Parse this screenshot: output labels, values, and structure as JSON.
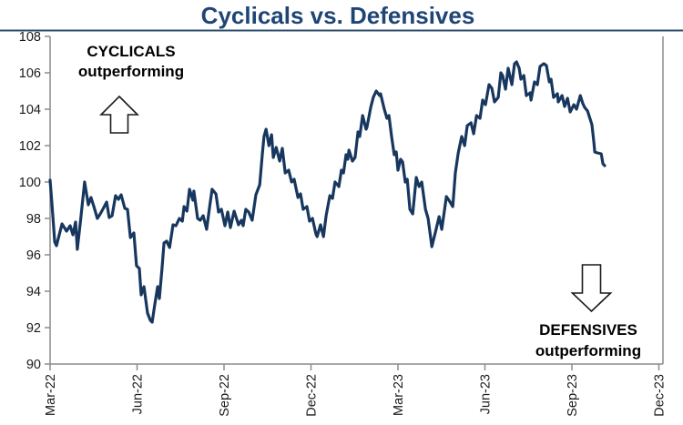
{
  "chart_data": {
    "type": "line",
    "title": "Cyclicals vs. Defensives",
    "grid": false,
    "legend": "none",
    "y_axis": {
      "min": 90,
      "max": 108,
      "tick_step": 2,
      "ticks": [
        90,
        92,
        94,
        96,
        98,
        100,
        102,
        104,
        106,
        108
      ]
    },
    "x_axis": {
      "unit": "months",
      "range_months": [
        0,
        21
      ],
      "ticks": [
        {
          "label": "Mar-22",
          "month": 0
        },
        {
          "label": "Jun-22",
          "month": 3
        },
        {
          "label": "Sep-22",
          "month": 6
        },
        {
          "label": "Dec-22",
          "month": 9
        },
        {
          "label": "Mar-23",
          "month": 12
        },
        {
          "label": "Jun-23",
          "month": 15
        },
        {
          "label": "Sep-23",
          "month": 18
        },
        {
          "label": "Dec-23",
          "month": 21
        }
      ]
    },
    "series": [
      {
        "points": [
          [
            0.0,
            100.1
          ],
          [
            0.06,
            98.9
          ],
          [
            0.16,
            96.7
          ],
          [
            0.22,
            96.5
          ],
          [
            0.41,
            97.7
          ],
          [
            0.57,
            97.3
          ],
          [
            0.69,
            97.6
          ],
          [
            0.79,
            97.1
          ],
          [
            0.88,
            97.8
          ],
          [
            0.94,
            96.3
          ],
          [
            1.06,
            98.0
          ],
          [
            1.19,
            100.0
          ],
          [
            1.32,
            98.75
          ],
          [
            1.41,
            99.15
          ],
          [
            1.51,
            98.65
          ],
          [
            1.63,
            98.0
          ],
          [
            1.73,
            98.25
          ],
          [
            1.82,
            98.5
          ],
          [
            1.95,
            98.9
          ],
          [
            2.04,
            98.05
          ],
          [
            2.14,
            98.15
          ],
          [
            2.26,
            99.25
          ],
          [
            2.36,
            99.05
          ],
          [
            2.45,
            99.3
          ],
          [
            2.58,
            98.55
          ],
          [
            2.67,
            98.5
          ],
          [
            2.77,
            96.95
          ],
          [
            2.89,
            97.2
          ],
          [
            2.98,
            95.4
          ],
          [
            3.08,
            95.25
          ],
          [
            3.14,
            93.8
          ],
          [
            3.24,
            94.25
          ],
          [
            3.36,
            92.8
          ],
          [
            3.46,
            92.4
          ],
          [
            3.52,
            92.3
          ],
          [
            3.61,
            93.25
          ],
          [
            3.71,
            94.25
          ],
          [
            3.77,
            93.6
          ],
          [
            3.86,
            95.25
          ],
          [
            3.93,
            96.65
          ],
          [
            4.02,
            96.75
          ],
          [
            4.12,
            96.4
          ],
          [
            4.24,
            97.65
          ],
          [
            4.34,
            97.6
          ],
          [
            4.46,
            98.0
          ],
          [
            4.56,
            97.85
          ],
          [
            4.62,
            98.65
          ],
          [
            4.72,
            98.4
          ],
          [
            4.81,
            99.6
          ],
          [
            4.93,
            99.0
          ],
          [
            4.96,
            99.5
          ],
          [
            5.09,
            98.0
          ],
          [
            5.18,
            97.9
          ],
          [
            5.28,
            98.15
          ],
          [
            5.4,
            97.4
          ],
          [
            5.5,
            98.6
          ],
          [
            5.59,
            99.6
          ],
          [
            5.72,
            99.35
          ],
          [
            5.81,
            98.35
          ],
          [
            5.91,
            98.5
          ],
          [
            6.03,
            97.6
          ],
          [
            6.13,
            98.35
          ],
          [
            6.22,
            97.5
          ],
          [
            6.35,
            98.4
          ],
          [
            6.5,
            97.65
          ],
          [
            6.6,
            97.9
          ],
          [
            6.66,
            97.6
          ],
          [
            6.75,
            98.5
          ],
          [
            6.85,
            98.35
          ],
          [
            6.97,
            97.9
          ],
          [
            7.1,
            99.3
          ],
          [
            7.23,
            99.85
          ],
          [
            7.32,
            101.5
          ],
          [
            7.38,
            102.5
          ],
          [
            7.45,
            102.9
          ],
          [
            7.55,
            102.0
          ],
          [
            7.64,
            102.6
          ],
          [
            7.7,
            101.35
          ],
          [
            7.8,
            101.9
          ],
          [
            7.92,
            101.15
          ],
          [
            8.01,
            101.85
          ],
          [
            8.11,
            100.5
          ],
          [
            8.23,
            100.65
          ],
          [
            8.33,
            100.0
          ],
          [
            8.42,
            100.15
          ],
          [
            8.55,
            99.15
          ],
          [
            8.64,
            99.35
          ],
          [
            8.73,
            98.5
          ],
          [
            8.86,
            98.65
          ],
          [
            8.95,
            97.85
          ],
          [
            9.05,
            98.0
          ],
          [
            9.17,
            97.15
          ],
          [
            9.21,
            97.0
          ],
          [
            9.33,
            97.65
          ],
          [
            9.43,
            97.0
          ],
          [
            9.52,
            98.15
          ],
          [
            9.65,
            99.25
          ],
          [
            9.74,
            99.1
          ],
          [
            9.83,
            100.0
          ],
          [
            9.96,
            99.75
          ],
          [
            10.05,
            100.65
          ],
          [
            10.12,
            100.5
          ],
          [
            10.21,
            101.5
          ],
          [
            10.27,
            101.25
          ],
          [
            10.31,
            101.75
          ],
          [
            10.43,
            101.15
          ],
          [
            10.52,
            101.35
          ],
          [
            10.62,
            102.75
          ],
          [
            10.68,
            102.5
          ],
          [
            10.78,
            103.65
          ],
          [
            10.9,
            102.9
          ],
          [
            10.93,
            103.0
          ],
          [
            11.06,
            104.1
          ],
          [
            11.15,
            104.65
          ],
          [
            11.25,
            105.0
          ],
          [
            11.37,
            104.75
          ],
          [
            11.4,
            104.85
          ],
          [
            11.53,
            104.0
          ],
          [
            11.62,
            103.5
          ],
          [
            11.69,
            103.65
          ],
          [
            11.78,
            102.5
          ],
          [
            11.87,
            101.5
          ],
          [
            11.94,
            101.65
          ],
          [
            12.0,
            100.65
          ],
          [
            12.09,
            101.25
          ],
          [
            12.16,
            101.1
          ],
          [
            12.25,
            100.0
          ],
          [
            12.32,
            100.15
          ],
          [
            12.41,
            98.5
          ],
          [
            12.51,
            98.25
          ],
          [
            12.63,
            100.25
          ],
          [
            12.73,
            99.75
          ],
          [
            12.82,
            100.0
          ],
          [
            12.95,
            98.5
          ],
          [
            13.04,
            98.0
          ],
          [
            13.17,
            96.45
          ],
          [
            13.3,
            97.3
          ],
          [
            13.42,
            98.1
          ],
          [
            13.51,
            97.4
          ],
          [
            13.67,
            99.2
          ],
          [
            13.76,
            99.0
          ],
          [
            13.89,
            98.65
          ],
          [
            13.98,
            100.5
          ],
          [
            14.08,
            101.6
          ],
          [
            14.2,
            102.5
          ],
          [
            14.3,
            102.0
          ],
          [
            14.39,
            103.1
          ],
          [
            14.52,
            103.25
          ],
          [
            14.61,
            102.65
          ],
          [
            14.71,
            103.65
          ],
          [
            14.83,
            103.5
          ],
          [
            14.92,
            104.5
          ],
          [
            15.02,
            104.25
          ],
          [
            15.14,
            105.35
          ],
          [
            15.24,
            105.15
          ],
          [
            15.33,
            104.4
          ],
          [
            15.46,
            104.65
          ],
          [
            15.55,
            106.0
          ],
          [
            15.61,
            105.85
          ],
          [
            15.71,
            105.1
          ],
          [
            15.8,
            106.25
          ],
          [
            15.93,
            105.35
          ],
          [
            16.02,
            106.5
          ],
          [
            16.09,
            106.6
          ],
          [
            16.18,
            106.25
          ],
          [
            16.24,
            105.65
          ],
          [
            16.34,
            105.85
          ],
          [
            16.43,
            104.75
          ],
          [
            16.56,
            104.9
          ],
          [
            16.59,
            104.5
          ],
          [
            16.71,
            105.5
          ],
          [
            16.81,
            105.35
          ],
          [
            16.9,
            106.35
          ],
          [
            17.03,
            106.5
          ],
          [
            17.12,
            106.4
          ],
          [
            17.22,
            105.5
          ],
          [
            17.28,
            105.65
          ],
          [
            17.37,
            104.65
          ],
          [
            17.5,
            104.85
          ],
          [
            17.53,
            104.4
          ],
          [
            17.66,
            104.75
          ],
          [
            17.75,
            104.15
          ],
          [
            17.85,
            104.6
          ],
          [
            17.94,
            103.85
          ],
          [
            18.07,
            104.25
          ],
          [
            18.16,
            104.0
          ],
          [
            18.29,
            104.75
          ],
          [
            18.38,
            104.3
          ],
          [
            18.44,
            104.1
          ],
          [
            18.54,
            103.9
          ],
          [
            18.69,
            103.15
          ],
          [
            18.76,
            102.15
          ],
          [
            18.79,
            101.65
          ],
          [
            18.88,
            101.6
          ],
          [
            19.01,
            101.55
          ],
          [
            19.07,
            101.0
          ],
          [
            19.13,
            100.9
          ]
        ]
      }
    ],
    "annotations": {
      "cyclicals": {
        "line1": "CYCLICALS",
        "line2": "outperforming",
        "arrow": "up"
      },
      "defensives": {
        "line1": "DEFENSIVES",
        "line2": "outperforming",
        "arrow": "down"
      }
    },
    "colors": {
      "line": "#17375e",
      "title": "#1f4576",
      "title_rule": "#2e4d6e",
      "axis": "#8c8c8c",
      "tick_label": "#1a1a1a",
      "annotation_text": "#000000",
      "arrow_outline": "#1a1a1a",
      "arrow_fill": "#ffffff",
      "background": "#ffffff"
    }
  }
}
